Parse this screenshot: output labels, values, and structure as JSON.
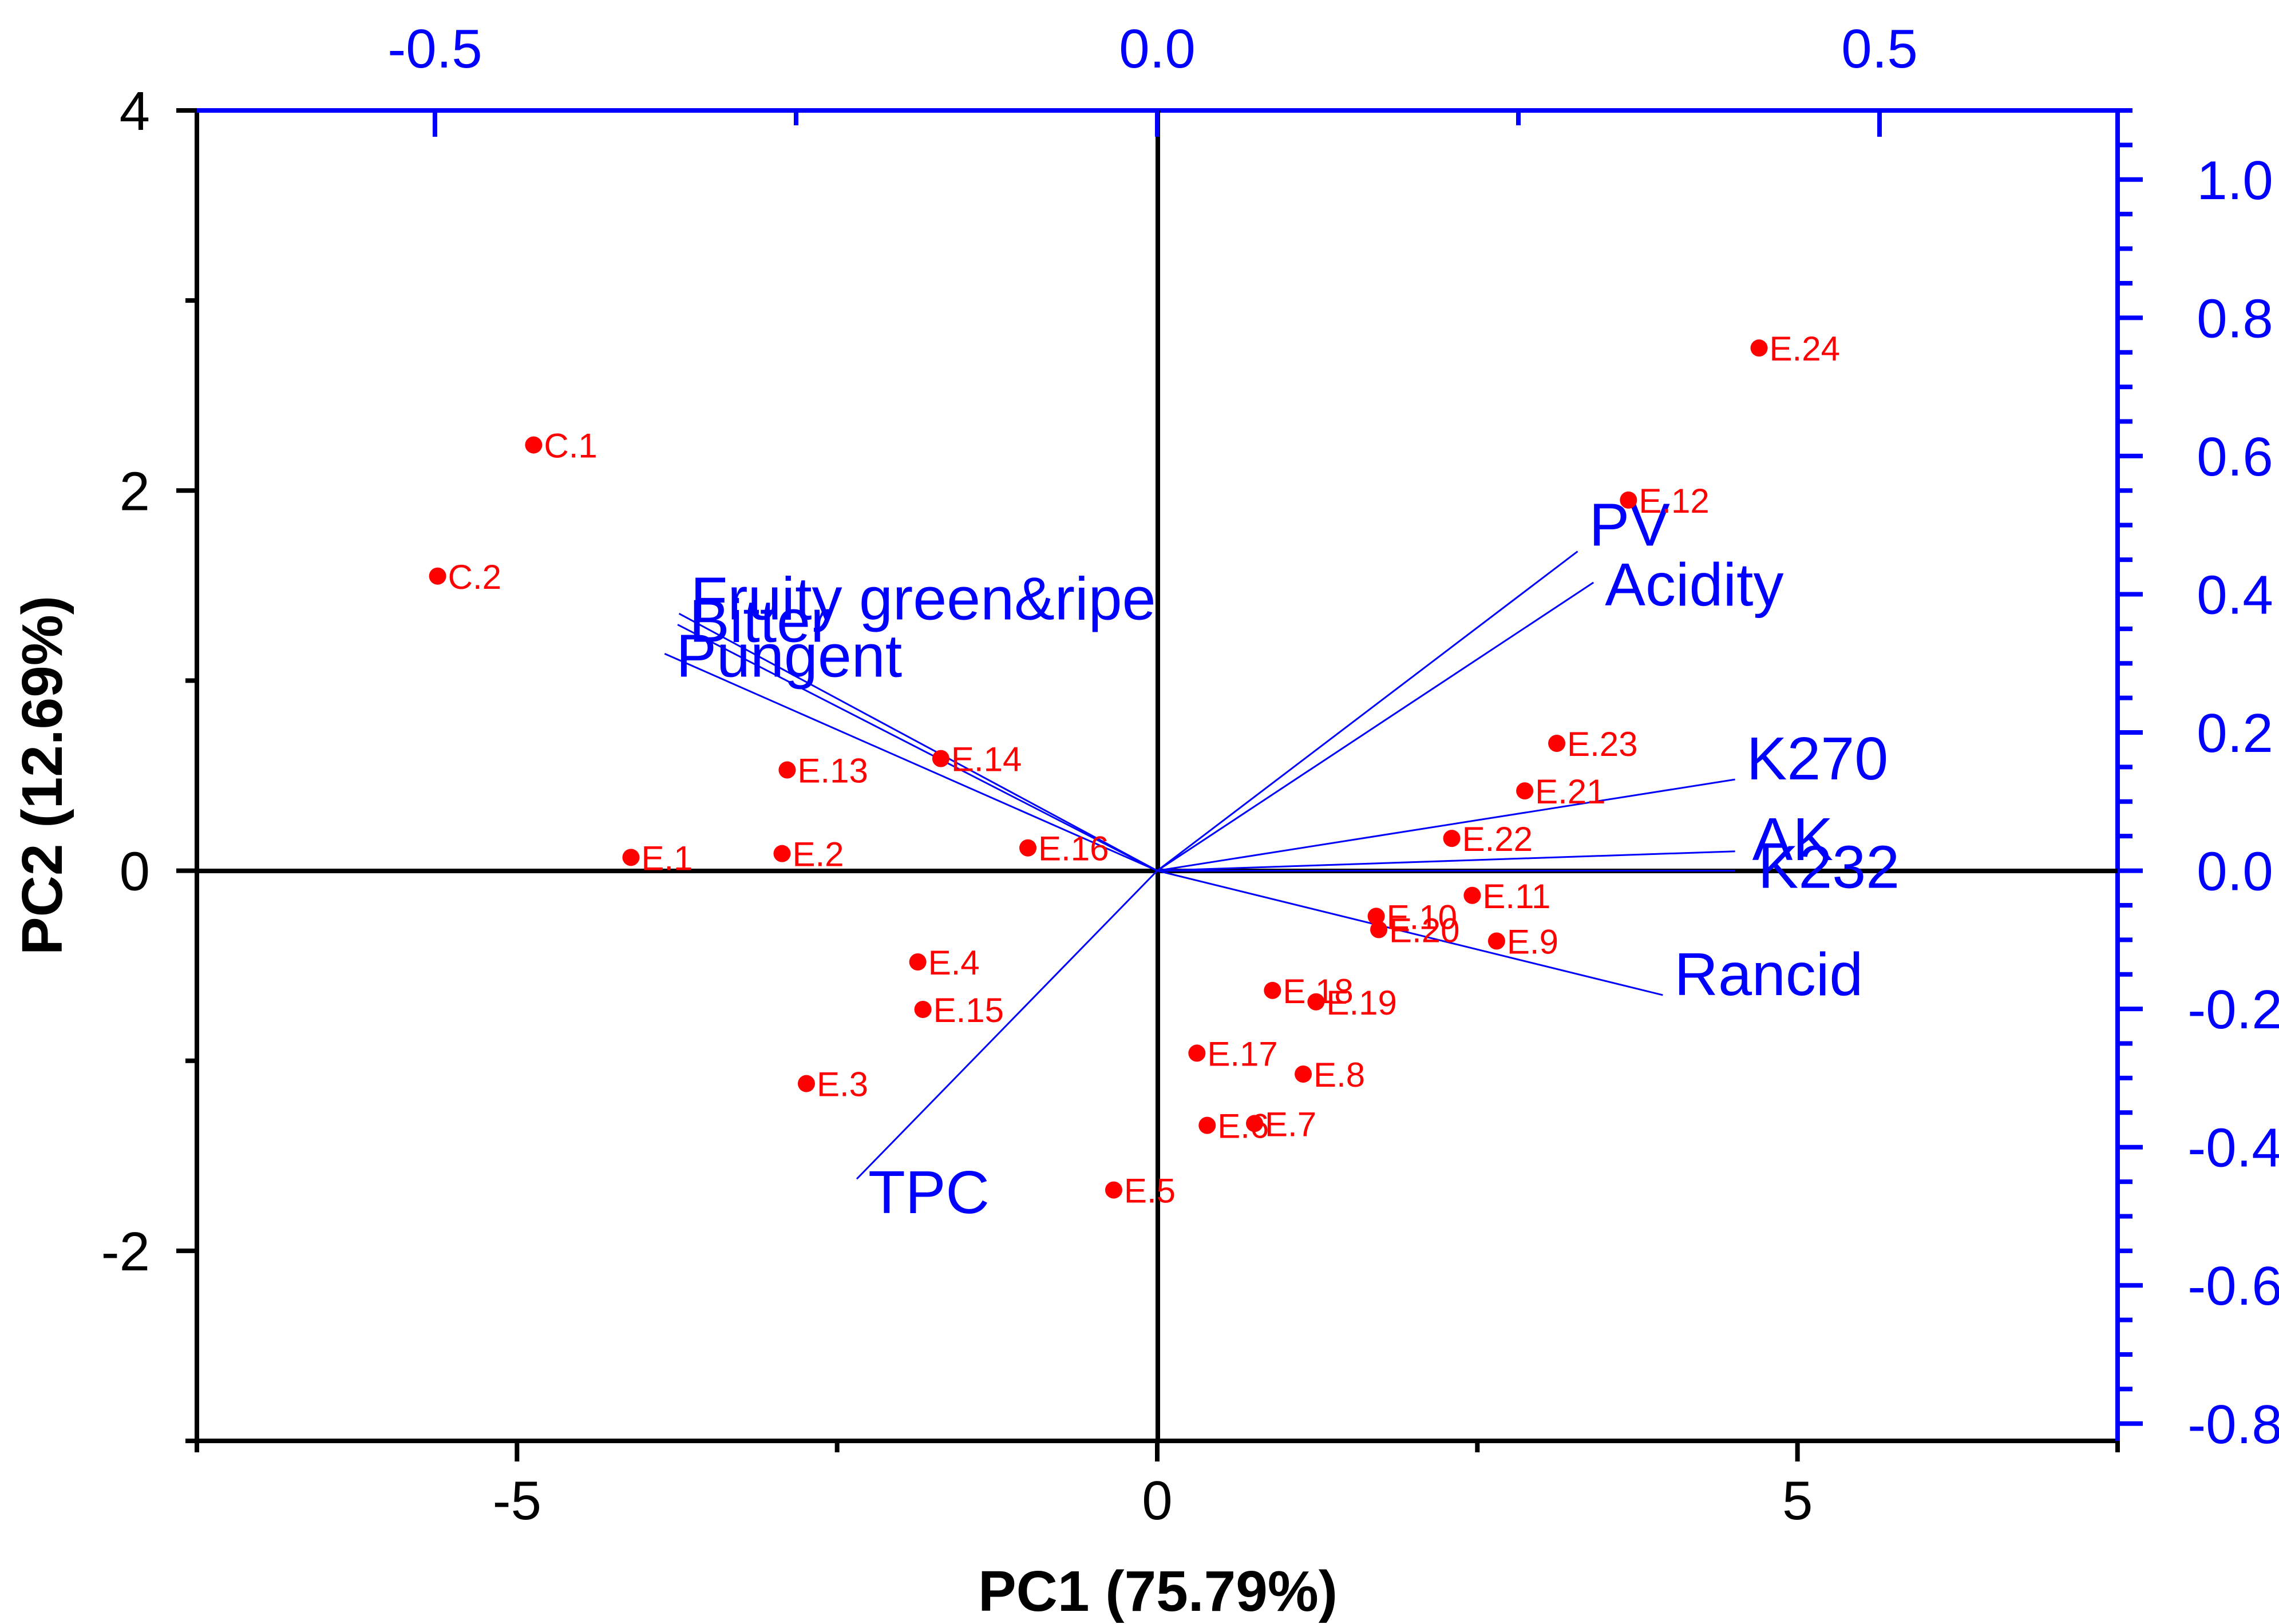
{
  "chart_data": {
    "type": "scatter",
    "subtype": "biplot",
    "xlabel": "PC1 (75.79%)",
    "ylabel": "PC2 (12.69%)",
    "xlim": [
      -7.5,
      7.5
    ],
    "ylim": [
      -3,
      4
    ],
    "x_ticks": [
      -5,
      0,
      5
    ],
    "x_tick_labels": [
      "-5",
      "0",
      "5"
    ],
    "y_ticks": [
      -2,
      0,
      2,
      4
    ],
    "y_tick_labels": [
      "-2",
      "0",
      "2",
      "4"
    ],
    "top_axis": {
      "ticks": [
        -0.5,
        0.0,
        0.5
      ],
      "tick_labels": [
        "-0.5",
        "0.0",
        "0.5"
      ],
      "lim": [
        -0.6648,
        0.6648
      ]
    },
    "right_axis": {
      "ticks": [
        1.0,
        0.8,
        0.6,
        0.4,
        0.2,
        0.0,
        -0.2,
        -0.4,
        -0.6,
        -0.8
      ],
      "tick_labels": [
        "1.0",
        "0.8",
        "0.6",
        "0.4",
        "0.2",
        "0.0",
        "-0.2",
        "-0.4",
        "-0.6",
        "-0.8"
      ],
      "lim": [
        -0.825,
        1.1
      ]
    },
    "points": [
      {
        "label": "C.1",
        "x": -4.87,
        "y": 2.24
      },
      {
        "label": "C.2",
        "x": -5.62,
        "y": 1.55
      },
      {
        "label": "E.1",
        "x": -4.11,
        "y": 0.07
      },
      {
        "label": "E.2",
        "x": -2.93,
        "y": 0.09
      },
      {
        "label": "E.3",
        "x": -2.74,
        "y": -1.12
      },
      {
        "label": "E.4",
        "x": -1.87,
        "y": -0.48
      },
      {
        "label": "E.5",
        "x": -0.34,
        "y": -1.68
      },
      {
        "label": "E.6",
        "x": 0.39,
        "y": -1.34
      },
      {
        "label": "E.7",
        "x": 0.76,
        "y": -1.33
      },
      {
        "label": "E.8",
        "x": 1.14,
        "y": -1.07
      },
      {
        "label": "E.9",
        "x": 2.65,
        "y": -0.37
      },
      {
        "label": "E.10",
        "x": 1.71,
        "y": -0.24
      },
      {
        "label": "E.11",
        "x": 2.46,
        "y": -0.13
      },
      {
        "label": "E.12",
        "x": 3.68,
        "y": 1.95
      },
      {
        "label": "E.13",
        "x": -2.89,
        "y": 0.53
      },
      {
        "label": "E.14",
        "x": -1.69,
        "y": 0.59
      },
      {
        "label": "E.15",
        "x": -1.83,
        "y": -0.73
      },
      {
        "label": "E.16",
        "x": -1.01,
        "y": 0.12
      },
      {
        "label": "E.17",
        "x": 0.31,
        "y": -0.96
      },
      {
        "label": "E.18",
        "x": 0.9,
        "y": -0.63
      },
      {
        "label": "E.19",
        "x": 1.24,
        "y": -0.69
      },
      {
        "label": "E.20",
        "x": 1.73,
        "y": -0.31
      },
      {
        "label": "E.21",
        "x": 2.87,
        "y": 0.42
      },
      {
        "label": "E.22",
        "x": 2.3,
        "y": 0.17
      },
      {
        "label": "E.23",
        "x": 3.12,
        "y": 0.67
      },
      {
        "label": "E.24",
        "x": 4.7,
        "y": 2.75
      }
    ],
    "loadings": [
      {
        "label": "PV",
        "x": 0.291,
        "y": 0.462
      },
      {
        "label": "Acidity",
        "x": 0.302,
        "y": 0.417
      },
      {
        "label": "K270",
        "x": 0.4,
        "y": 0.132
      },
      {
        "label": "AK",
        "x": 0.4,
        "y": 0.028
      },
      {
        "label": "K232",
        "x": 0.4,
        "y": 0.0
      },
      {
        "label": "Rancid",
        "x": 0.35,
        "y": -0.18
      },
      {
        "label": "TPC",
        "x": -0.208,
        "y": -0.446
      },
      {
        "label": "Fruity green&ripe",
        "x": -0.331,
        "y": 0.372
      },
      {
        "label": "Bitter",
        "x": -0.332,
        "y": 0.356
      },
      {
        "label": "Pungent",
        "x": -0.341,
        "y": 0.314
      }
    ]
  }
}
